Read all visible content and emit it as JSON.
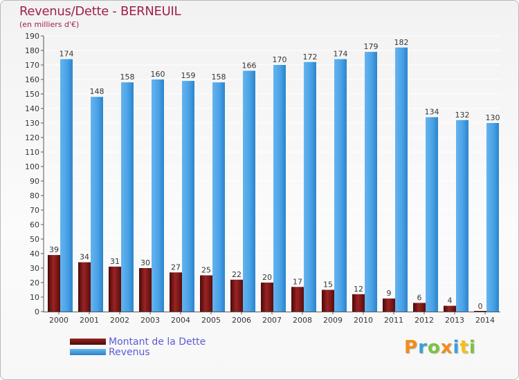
{
  "header": {
    "title": "Revenus/Dette - BERNEUIL",
    "subtitle": "(en milliers d'€)"
  },
  "chart_data": {
    "type": "bar",
    "title": "Revenus/Dette - BERNEUIL",
    "subtitle": "(en milliers d'€)",
    "categories": [
      "2000",
      "2001",
      "2002",
      "2003",
      "2004",
      "2005",
      "2006",
      "2007",
      "2008",
      "2009",
      "2010",
      "2011",
      "2012",
      "2013",
      "2014"
    ],
    "series": [
      {
        "name": "Montant de la Dette",
        "color": "#7a1515",
        "values": [
          39,
          34,
          31,
          30,
          27,
          25,
          22,
          20,
          17,
          15,
          12,
          9,
          6,
          4,
          0
        ]
      },
      {
        "name": "Revenus",
        "color": "#3b96e0",
        "values": [
          174,
          148,
          158,
          160,
          159,
          158,
          166,
          170,
          172,
          174,
          179,
          182,
          134,
          132,
          130
        ]
      }
    ],
    "ylim": [
      0,
      190
    ],
    "yticks": [
      0,
      10,
      20,
      30,
      40,
      50,
      60,
      70,
      80,
      90,
      100,
      110,
      120,
      130,
      140,
      150,
      160,
      170,
      180,
      190
    ],
    "grid": true,
    "legend": "bottom-left"
  },
  "legend": {
    "items": [
      {
        "label": "Montant de la Dette",
        "color": "#7a1515"
      },
      {
        "label": "Revenus",
        "color": "#3b96e0"
      }
    ]
  },
  "logo": {
    "letters": [
      "P",
      "r",
      "o",
      "x",
      "i",
      "t",
      "i"
    ],
    "colors": [
      "#f28c1a",
      "#3aa0d8",
      "#7cc242",
      "#f28c1a",
      "#3aa0d8",
      "#f2c01a",
      "#7cc242"
    ]
  }
}
